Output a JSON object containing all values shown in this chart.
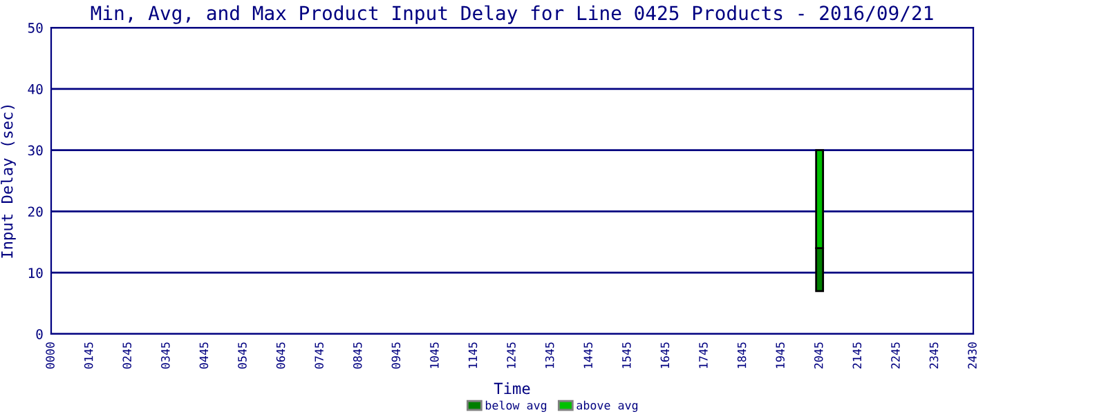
{
  "chart_data": {
    "type": "bar",
    "title": "Min, Avg, and Max Product Input Delay for Line 0425 Products - 2016/09/21",
    "xlabel": "Time",
    "ylabel": "Input Delay (sec)",
    "categories": [
      "0000",
      "0145",
      "0245",
      "0345",
      "0445",
      "0545",
      "0645",
      "0745",
      "0845",
      "0945",
      "1045",
      "1145",
      "1245",
      "1345",
      "1445",
      "1545",
      "1645",
      "1745",
      "1845",
      "1945",
      "2045",
      "2145",
      "2245",
      "2345",
      "2430"
    ],
    "series": [
      {
        "name": "below avg",
        "color": "#007f00",
        "base": [
          null,
          null,
          null,
          null,
          null,
          null,
          null,
          null,
          null,
          null,
          null,
          null,
          null,
          null,
          null,
          null,
          null,
          null,
          null,
          null,
          7,
          null,
          null,
          null,
          null
        ],
        "values": [
          null,
          null,
          null,
          null,
          null,
          null,
          null,
          null,
          null,
          null,
          null,
          null,
          null,
          null,
          null,
          null,
          null,
          null,
          null,
          null,
          7,
          null,
          null,
          null,
          null
        ]
      },
      {
        "name": "above avg",
        "color": "#00c000",
        "base": [
          null,
          null,
          null,
          null,
          null,
          null,
          null,
          null,
          null,
          null,
          null,
          null,
          null,
          null,
          null,
          null,
          null,
          null,
          null,
          null,
          14,
          null,
          null,
          null,
          null
        ],
        "values": [
          null,
          null,
          null,
          null,
          null,
          null,
          null,
          null,
          null,
          null,
          null,
          null,
          null,
          null,
          null,
          null,
          null,
          null,
          null,
          null,
          16,
          null,
          null,
          null,
          null
        ]
      }
    ],
    "ylim": [
      0,
      50
    ],
    "yticks": [
      0,
      10,
      20,
      30,
      40,
      50
    ],
    "grid": "y",
    "legend": "bottom"
  }
}
